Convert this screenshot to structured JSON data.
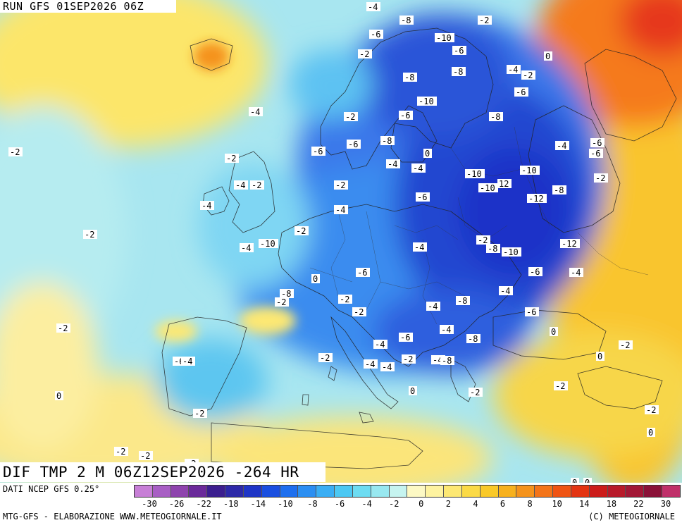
{
  "header": {
    "run_label": "RUN GFS 01SEP2026 06Z"
  },
  "map": {
    "bottom_title": "DIF TMP 2 M 06Z12SEP2026 -264 HR",
    "contour_labels": [
      "-4",
      "-8",
      "-2",
      "-6",
      "-10",
      "-6",
      "0",
      "-2",
      "-8",
      "-8",
      "-4",
      "-2",
      "-6",
      "-10",
      "-2",
      "-6",
      "-8",
      "-2",
      "-4",
      "-6",
      "-6",
      "-8",
      "0",
      "-6",
      "-4",
      "-2",
      "-4",
      "-4",
      "-10",
      "-10",
      "-6",
      "-2",
      "-4",
      "-2",
      "-10",
      "12",
      "-8",
      "-2",
      "-6",
      "-12",
      "-4",
      "-4",
      "-2",
      "-2",
      "-4",
      "-2",
      "-8",
      "-10",
      "-12",
      "-4",
      "-10",
      "-6",
      "-6",
      "-4",
      "0",
      "-4",
      "-8",
      "-2",
      "-2",
      "-2",
      "-4",
      "-8",
      "-6",
      "-2",
      "-4",
      "-8",
      "0",
      "-6",
      "-4",
      "-2",
      "-4",
      "-4",
      "-2",
      "-4",
      "-8",
      "0",
      "-6",
      "-4",
      "-2",
      "0",
      "-2",
      "-2",
      "-2",
      "-2",
      "-2",
      "-2",
      "0",
      "0",
      "-2",
      "0",
      "0"
    ],
    "colors": {
      "ocean_base": "#a8e6f0",
      "cold_core": "#1a33c8",
      "warm_core": "#ff7a1a"
    }
  },
  "legend": {
    "data_source": "DATI NCEP GFS 0.25°",
    "colorbar_colors": [
      "#c77fd6",
      "#a85fc4",
      "#8e44ad",
      "#6a2a9a",
      "#3b1f8f",
      "#2d2aa8",
      "#1f36c6",
      "#1a4fe0",
      "#1e6fee",
      "#2b8ff2",
      "#3aaef4",
      "#4cc8f3",
      "#6ddcf2",
      "#98e8f0",
      "#c6f4f0",
      "#fdf9c4",
      "#fef3a0",
      "#fde873",
      "#fbda46",
      "#f9c928",
      "#f7b11e",
      "#f5931c",
      "#f37419",
      "#ef5414",
      "#e33412",
      "#cc1c1a",
      "#b81a2a",
      "#a21836",
      "#8a1238",
      "#c0306a"
    ],
    "tick_labels": [
      "-30",
      "-26",
      "-22",
      "-18",
      "-14",
      "-10",
      "-8",
      "-6",
      "-4",
      "-2",
      "0",
      "2",
      "4",
      "6",
      "8",
      "10",
      "14",
      "18",
      "22",
      "30"
    ],
    "credit_left": "MTG-GFS - ELABORAZIONE WWW.METEOGIORNALE.IT",
    "credit_right": "(C) METEOGIORNALE"
  }
}
